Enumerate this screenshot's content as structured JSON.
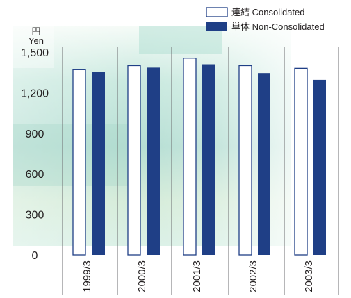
{
  "chart_data": {
    "type": "bar",
    "unit_label": {
      "line1": "円",
      "line2": "Yen"
    },
    "categories": [
      "1999/3",
      "2000/3",
      "2001/3",
      "2002/3",
      "2003/3"
    ],
    "series": [
      {
        "name": "連結 Consolidated",
        "style": "outline",
        "color": "#1f3f86",
        "values": [
          1370,
          1400,
          1455,
          1400,
          1380
        ]
      },
      {
        "name": "単体 Non-Consolidated",
        "style": "filled",
        "color": "#1f3f86",
        "values": [
          1355,
          1385,
          1410,
          1345,
          1295
        ]
      }
    ],
    "yticks": [
      0,
      300,
      600,
      900,
      1200,
      1500
    ],
    "ytick_labels": [
      "0",
      "300",
      "600",
      "900",
      "1,200",
      "1,500"
    ],
    "ylim": [
      0,
      1500
    ],
    "legend_position": "top-right",
    "grid": false
  },
  "colors": {
    "bar": "#1f3f86",
    "divider": "#6d6e71",
    "text": "#231f20",
    "background_light": "#eaf6f1",
    "background_mid": "#bfe3d8"
  }
}
